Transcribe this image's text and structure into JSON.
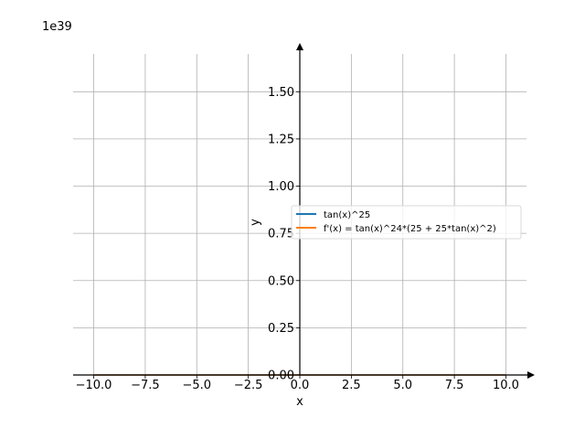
{
  "chart_data": {
    "type": "line",
    "title": "",
    "xlabel": "x",
    "ylabel": "y",
    "offset_text": "1e39",
    "xlim": [
      -11,
      11
    ],
    "ylim": [
      0,
      1.7
    ],
    "x_ticks": [
      -10,
      -7.5,
      -5,
      -2.5,
      0,
      2.5,
      5,
      7.5,
      10
    ],
    "x_tick_labels": [
      "−10.0",
      "−7.5",
      "−5.0",
      "−2.5",
      "0.0",
      "2.5",
      "5.0",
      "7.5",
      "10.0"
    ],
    "y_ticks": [
      0,
      0.25,
      0.5,
      0.75,
      1.0,
      1.25,
      1.5
    ],
    "y_tick_labels": [
      "0.00",
      "0.25",
      "0.50",
      "0.75",
      "1.00",
      "1.25",
      "1.50"
    ],
    "grid": true,
    "legend_position": "center-right",
    "series": [
      {
        "name": "tan(x)^25",
        "color": "#1f77b4",
        "x": [
          -10,
          10
        ],
        "y": [
          0,
          0
        ]
      },
      {
        "name": "f'(x) = tan(x)^24*(25 + 25*tan(x)^2)",
        "color": "#ff7f0e",
        "x": [
          -10,
          10
        ],
        "y": [
          0,
          0
        ]
      }
    ]
  }
}
